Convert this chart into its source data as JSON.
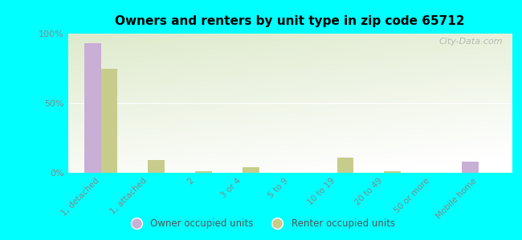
{
  "title": "Owners and renters by unit type in zip code 65712",
  "categories": [
    "1, detached",
    "1, attached",
    "2",
    "3 or 4",
    "5 to 9",
    "10 to 19",
    "20 to 49",
    "50 or more",
    "Mobile home"
  ],
  "owner_values": [
    93,
    0,
    0,
    0,
    0,
    0,
    0,
    0,
    8
  ],
  "renter_values": [
    75,
    9,
    1,
    4,
    0,
    11,
    1,
    0,
    0
  ],
  "owner_color": "#c9aed6",
  "renter_color": "#c8cc8a",
  "background_color": "#00ffff",
  "plot_bg_color": "#deeacc",
  "yticks": [
    0,
    50,
    100
  ],
  "ylabels": [
    "0%",
    "50%",
    "100%"
  ],
  "watermark": "City-Data.com",
  "legend_owner": "Owner occupied units",
  "legend_renter": "Renter occupied units",
  "tick_color": "#888888",
  "grid_color": "#e8eecc"
}
